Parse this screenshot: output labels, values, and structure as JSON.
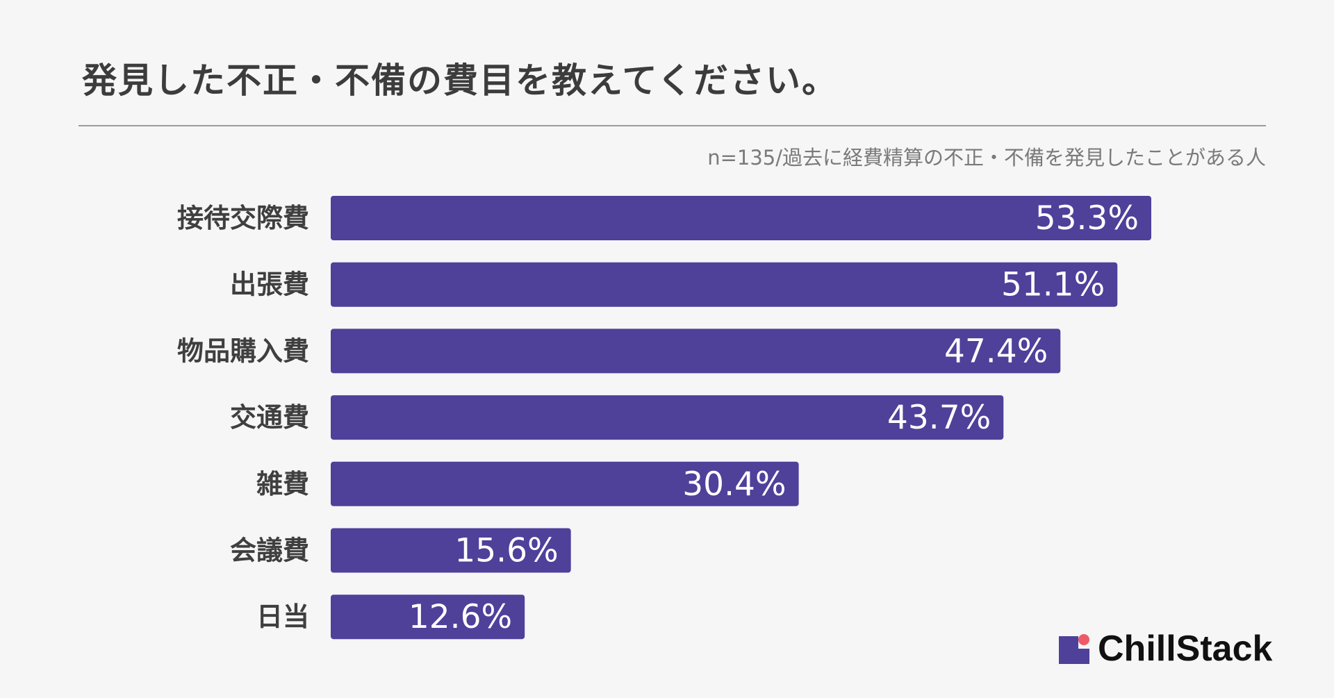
{
  "header": {
    "title": "発見した不正・不備の費目を教えてください。",
    "subtitle": "n=135/過去に経費精算の不正・不備を発見したことがある人"
  },
  "colors": {
    "bar": "#4f409a",
    "background": "#f6f6f6",
    "logo_accent": "#ef5a67"
  },
  "chart_data": {
    "type": "bar",
    "orientation": "horizontal",
    "categories": [
      "接待交際費",
      "出張費",
      "物品購入費",
      "交通費",
      "雑費",
      "会議費",
      "日当"
    ],
    "values": [
      53.3,
      51.1,
      47.4,
      43.7,
      30.4,
      15.6,
      12.6
    ],
    "value_labels": [
      "53.3%",
      "51.1%",
      "47.4%",
      "43.7%",
      "30.4%",
      "15.6%",
      "12.6%"
    ],
    "unit": "%",
    "xlim": [
      0,
      100
    ],
    "grid": false,
    "legend": "none"
  },
  "logo": {
    "text": "ChillStack",
    "icon": "chillstack-logo-icon"
  }
}
